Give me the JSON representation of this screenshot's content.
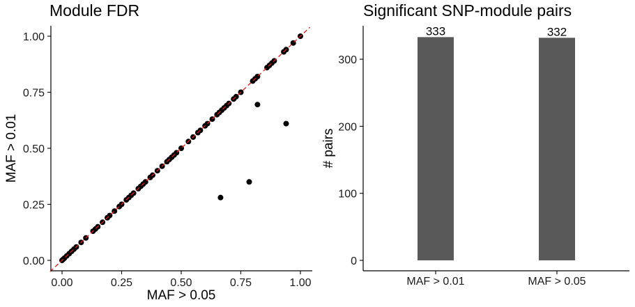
{
  "chart_data": [
    {
      "type": "scatter",
      "title": "Module FDR",
      "xlabel": "MAF > 0.05",
      "ylabel": "MAF > 0.01",
      "xlim": [
        0,
        1
      ],
      "ylim": [
        0,
        1
      ],
      "xticks": [
        "0.00",
        "0.25",
        "0.50",
        "0.75",
        "1.00"
      ],
      "yticks": [
        "0.00",
        "0.25",
        "0.50",
        "0.75",
        "1.00"
      ],
      "reference_line": {
        "slope": 1,
        "intercept": 0,
        "style": "dashed",
        "color": "#e41a1c"
      },
      "point_color": "#000000",
      "grid": false,
      "points": [
        [
          0.0,
          0.0
        ],
        [
          0.005,
          0.005
        ],
        [
          0.01,
          0.01
        ],
        [
          0.02,
          0.02
        ],
        [
          0.03,
          0.03
        ],
        [
          0.04,
          0.04
        ],
        [
          0.05,
          0.05
        ],
        [
          0.06,
          0.06
        ],
        [
          0.08,
          0.08
        ],
        [
          0.1,
          0.1
        ],
        [
          0.13,
          0.13
        ],
        [
          0.14,
          0.14
        ],
        [
          0.15,
          0.15
        ],
        [
          0.17,
          0.17
        ],
        [
          0.19,
          0.19
        ],
        [
          0.2,
          0.2
        ],
        [
          0.22,
          0.22
        ],
        [
          0.24,
          0.24
        ],
        [
          0.25,
          0.25
        ],
        [
          0.27,
          0.27
        ],
        [
          0.28,
          0.28
        ],
        [
          0.29,
          0.29
        ],
        [
          0.3,
          0.3
        ],
        [
          0.32,
          0.32
        ],
        [
          0.33,
          0.33
        ],
        [
          0.34,
          0.34
        ],
        [
          0.35,
          0.35
        ],
        [
          0.37,
          0.37
        ],
        [
          0.38,
          0.38
        ],
        [
          0.4,
          0.4
        ],
        [
          0.42,
          0.42
        ],
        [
          0.44,
          0.44
        ],
        [
          0.45,
          0.45
        ],
        [
          0.46,
          0.46
        ],
        [
          0.47,
          0.47
        ],
        [
          0.48,
          0.48
        ],
        [
          0.5,
          0.5
        ],
        [
          0.53,
          0.53
        ],
        [
          0.55,
          0.55
        ],
        [
          0.57,
          0.57
        ],
        [
          0.58,
          0.58
        ],
        [
          0.6,
          0.6
        ],
        [
          0.61,
          0.61
        ],
        [
          0.63,
          0.63
        ],
        [
          0.65,
          0.65
        ],
        [
          0.66,
          0.66
        ],
        [
          0.67,
          0.67
        ],
        [
          0.68,
          0.68
        ],
        [
          0.69,
          0.69
        ],
        [
          0.7,
          0.7
        ],
        [
          0.72,
          0.72
        ],
        [
          0.73,
          0.73
        ],
        [
          0.75,
          0.75
        ],
        [
          0.8,
          0.8
        ],
        [
          0.81,
          0.81
        ],
        [
          0.82,
          0.82
        ],
        [
          0.86,
          0.86
        ],
        [
          0.87,
          0.87
        ],
        [
          0.88,
          0.88
        ],
        [
          0.89,
          0.89
        ],
        [
          0.93,
          0.93
        ],
        [
          0.94,
          0.94
        ],
        [
          0.97,
          0.97
        ],
        [
          1.0,
          1.0
        ],
        [
          0.665,
          0.28
        ],
        [
          0.785,
          0.35
        ],
        [
          0.82,
          0.695
        ],
        [
          0.94,
          0.61
        ]
      ]
    },
    {
      "type": "bar",
      "title": "Significant SNP-module pairs",
      "xlabel": "",
      "ylabel": "# pairs",
      "categories": [
        "MAF > 0.01",
        "MAF > 0.05"
      ],
      "values": [
        333,
        332
      ],
      "data_labels": [
        "333",
        "332"
      ],
      "ylim": [
        0,
        350
      ],
      "yticks": [
        "0",
        "100",
        "200",
        "300"
      ],
      "bar_color": "#595959",
      "grid": false
    }
  ]
}
